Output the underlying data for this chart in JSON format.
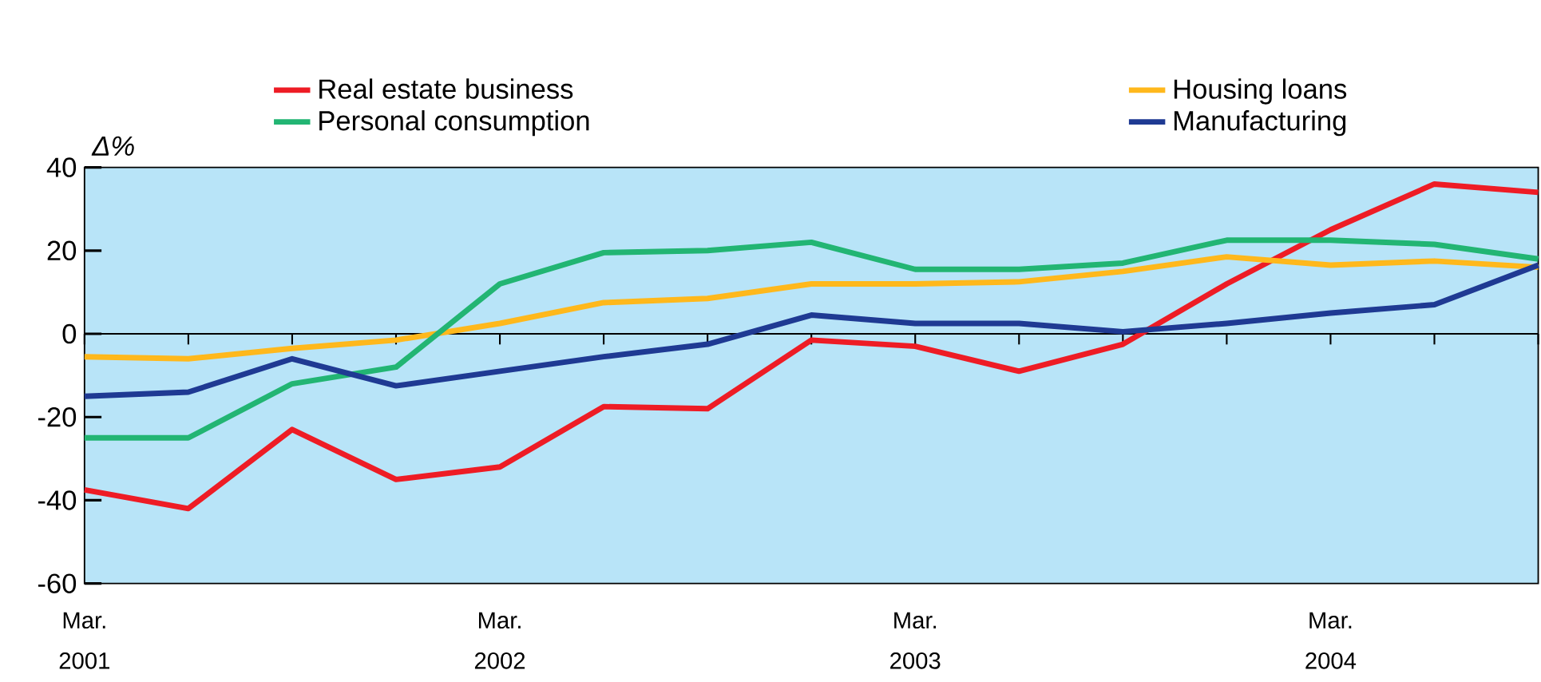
{
  "chart_data": {
    "type": "line",
    "ylabel": "Δ%",
    "categories": [
      "Mar. 2001",
      null,
      null,
      null,
      "Mar. 2002",
      null,
      null,
      null,
      "Mar. 2003",
      null,
      null,
      null,
      "Mar. 2004",
      null,
      null
    ],
    "series": [
      {
        "name": "Real estate business",
        "color": "#ee1c25",
        "values": [
          -37.5,
          -42,
          -23,
          -35,
          -32,
          -17.5,
          -18,
          -1.5,
          -3,
          -9,
          -2.5,
          12,
          25,
          36,
          34
        ]
      },
      {
        "name": "Housing loans",
        "color": "#ffb81c",
        "values": [
          -5.5,
          -6,
          -3.5,
          -1.5,
          2.5,
          7.5,
          8.5,
          12,
          12,
          12.5,
          15,
          18.5,
          16.5,
          17.5,
          16
        ]
      },
      {
        "name": "Personal consumption",
        "color": "#22b573",
        "values": [
          -25,
          -25,
          -12,
          -8,
          12,
          19.5,
          20,
          22,
          15.5,
          15.5,
          17,
          22.5,
          22.5,
          21.5,
          18
        ]
      },
      {
        "name": "Manufacturing",
        "color": "#1f3a93",
        "values": [
          -15,
          -14,
          -6,
          -12.5,
          -9,
          -5.5,
          -2.5,
          4.5,
          2.5,
          2.5,
          0.5,
          2.5,
          5,
          7,
          16.5
        ]
      }
    ],
    "ylim": [
      -60,
      40
    ],
    "yticks": [
      -60,
      -40,
      -20,
      0,
      20,
      40
    ],
    "ref_lines": [
      {
        "axis": "y",
        "value": 0,
        "color": "#000000"
      }
    ],
    "legend": "top",
    "marker": "none",
    "line_style": "solid",
    "grid": false
  }
}
